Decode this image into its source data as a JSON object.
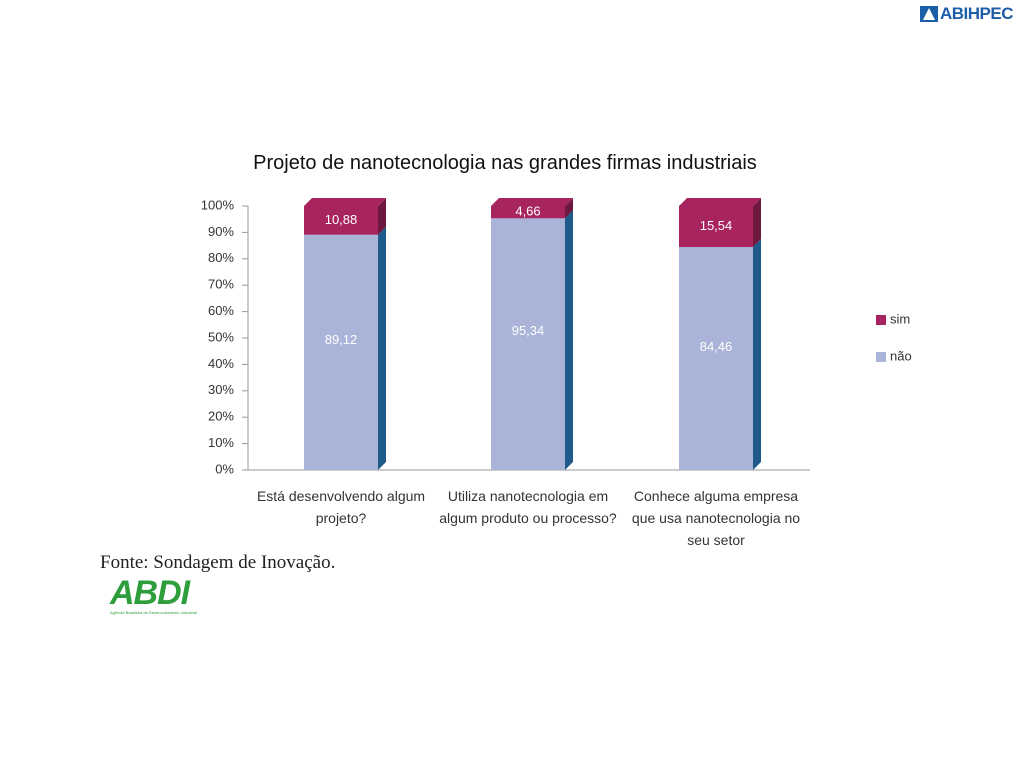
{
  "header": {
    "logo": "ABIHPEC"
  },
  "chart_data": {
    "type": "stacked_bar",
    "title": "Projeto de nanotecnologia nas grandes firmas industriais",
    "categories": [
      "Está desenvolvendo algum projeto?",
      "Utiliza nanotecnologia em algum produto ou processo?",
      "Conhece alguma empresa que usa nanotecnologia no seu setor"
    ],
    "series": [
      {
        "name": "sim",
        "color": "#a8245e",
        "values": [
          10.88,
          4.66,
          15.54
        ],
        "value_labels": [
          "10,88",
          "4,66",
          "15,54"
        ]
      },
      {
        "name": "não",
        "color": "#aab4d8",
        "values": [
          89.12,
          95.34,
          84.46
        ],
        "value_labels": [
          "89,12",
          "95,34",
          "84,46"
        ]
      }
    ],
    "ylim": [
      0,
      100
    ],
    "yticks": [
      {
        "value": 0,
        "label": "0%"
      },
      {
        "value": 10,
        "label": "10%"
      },
      {
        "value": 20,
        "label": "20%"
      },
      {
        "value": 30,
        "label": "30%"
      },
      {
        "value": 40,
        "label": "40%"
      },
      {
        "value": 50,
        "label": "50%"
      },
      {
        "value": 60,
        "label": "60%"
      },
      {
        "value": 70,
        "label": "70%"
      },
      {
        "value": 80,
        "label": "80%"
      },
      {
        "value": 90,
        "label": "90%"
      },
      {
        "value": 100,
        "label": "100%"
      }
    ],
    "legend": "right"
  },
  "source": "Fonte: Sondagem de Inovação.",
  "footer": {
    "logo": "ABDI",
    "logo_caption": "Agência Brasileira de Desenvolvimento Industrial"
  }
}
